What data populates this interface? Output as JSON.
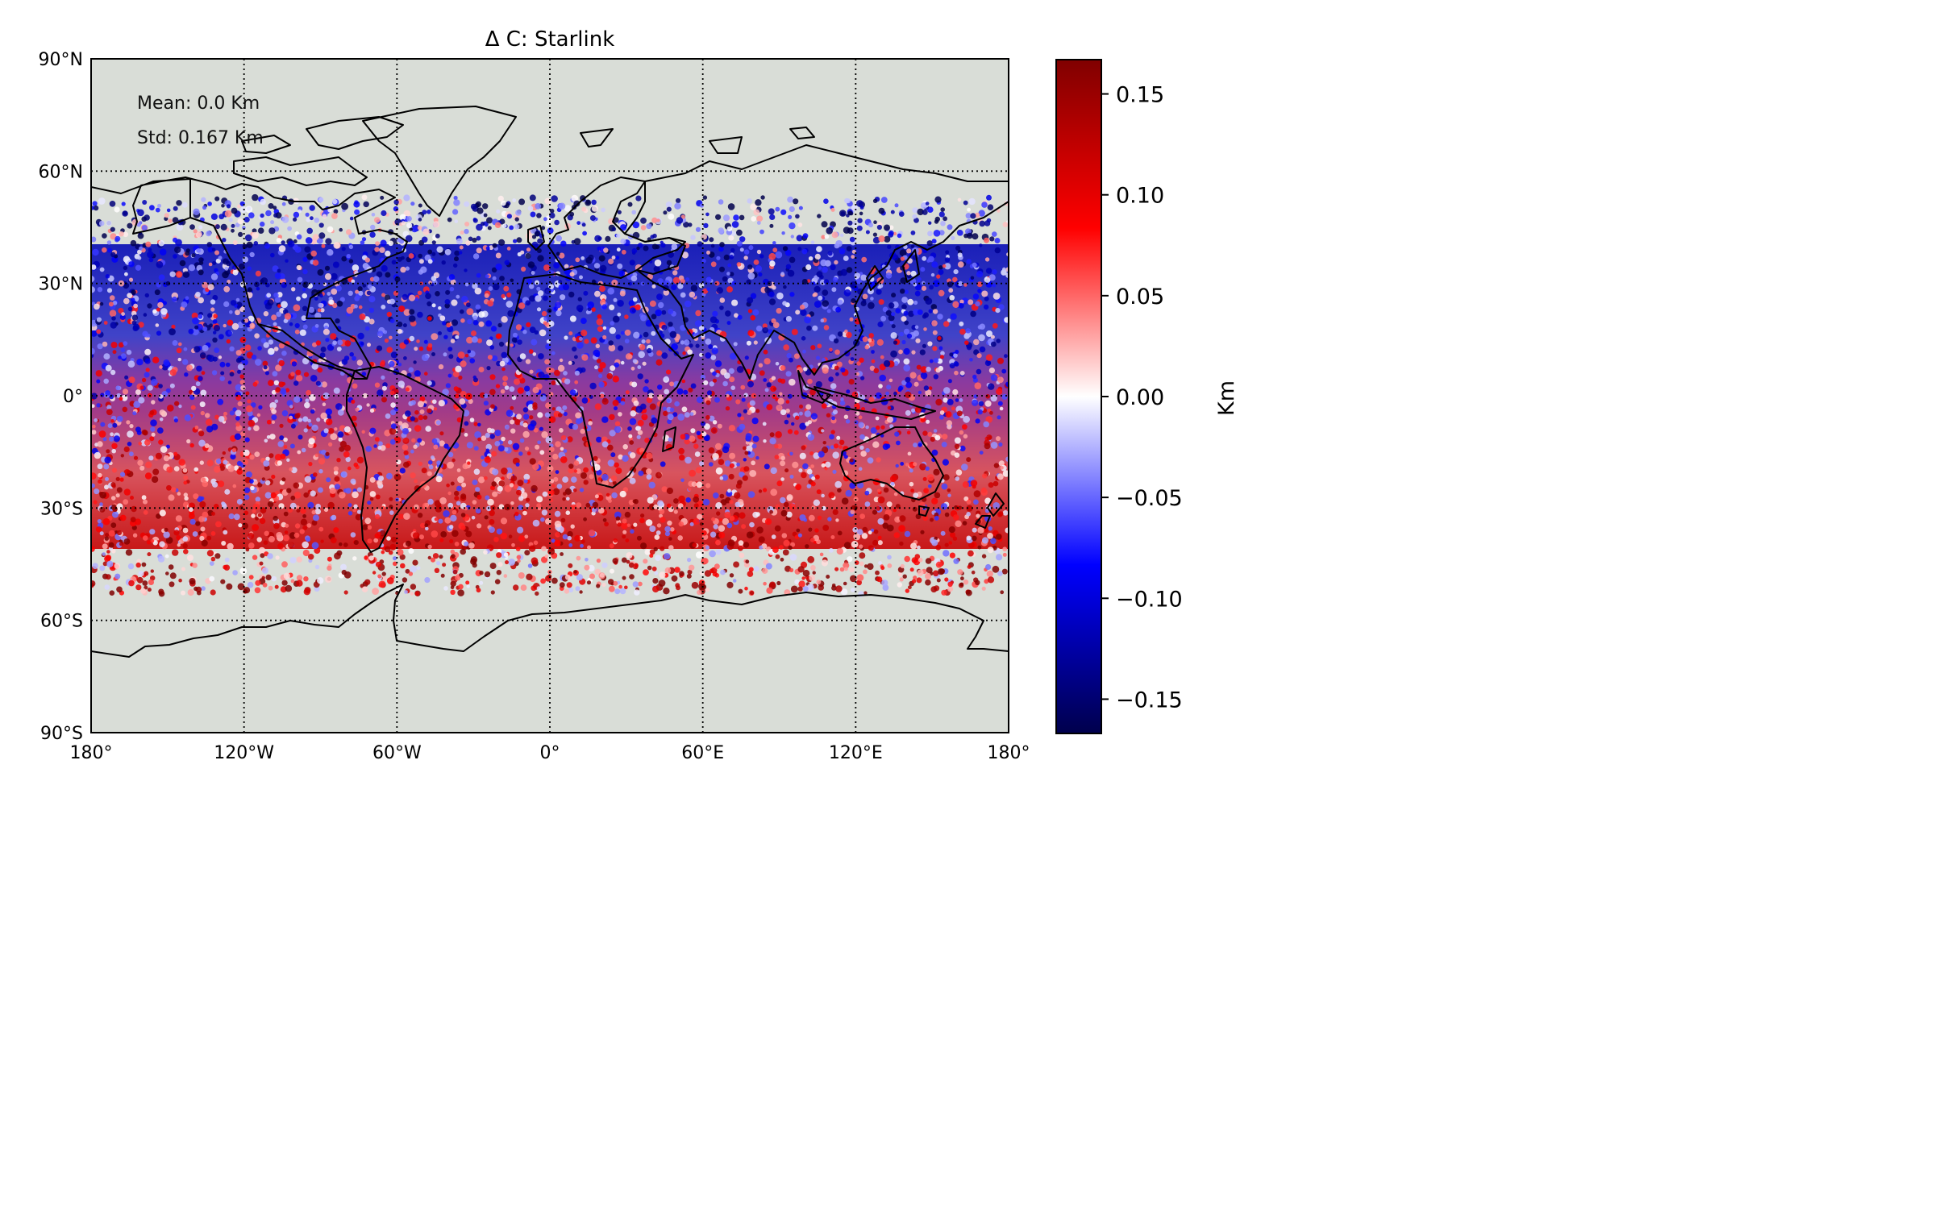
{
  "title": "Δ C: Starlink",
  "annotations": {
    "mean": "Mean: 0.0 Km",
    "std": "Std: 0.167 Km"
  },
  "colors": {
    "ocean_land": "#d9ddd7",
    "coastline": "#000000",
    "cmap_low": "#00004c",
    "cmap_mid": "#ffffff",
    "cmap_high": "#800000"
  },
  "colorbar": {
    "label": "Km",
    "ticks": [
      "0.15",
      "0.10",
      "0.05",
      "0.00",
      "−0.05",
      "−0.10",
      "−0.15"
    ],
    "tick_values": [
      0.15,
      0.1,
      0.05,
      0.0,
      -0.05,
      -0.1,
      -0.15
    ],
    "range": [
      -0.167,
      0.167
    ]
  },
  "chart_data": {
    "type": "scatter",
    "projection": "equirectangular",
    "title": "Δ C: Starlink",
    "x_ticks": [
      "180°",
      "120°W",
      "60°W",
      "0°",
      "60°E",
      "120°E",
      "180°"
    ],
    "x_tick_values": [
      -180,
      -120,
      -60,
      0,
      60,
      120,
      180
    ],
    "y_ticks": [
      "90°N",
      "60°N",
      "30°N",
      "0°",
      "30°S",
      "60°S",
      "90°S"
    ],
    "y_tick_values": [
      90,
      60,
      30,
      0,
      -30,
      -60,
      -90
    ],
    "xlim": [
      -180,
      180
    ],
    "ylim": [
      -90,
      90
    ],
    "data_lat_range": [
      -53,
      53
    ],
    "grid": "dotted",
    "trend": "values negative (blue) in the north, positive (red) in the south",
    "mean_km": 0.0,
    "std_km": 0.167
  }
}
